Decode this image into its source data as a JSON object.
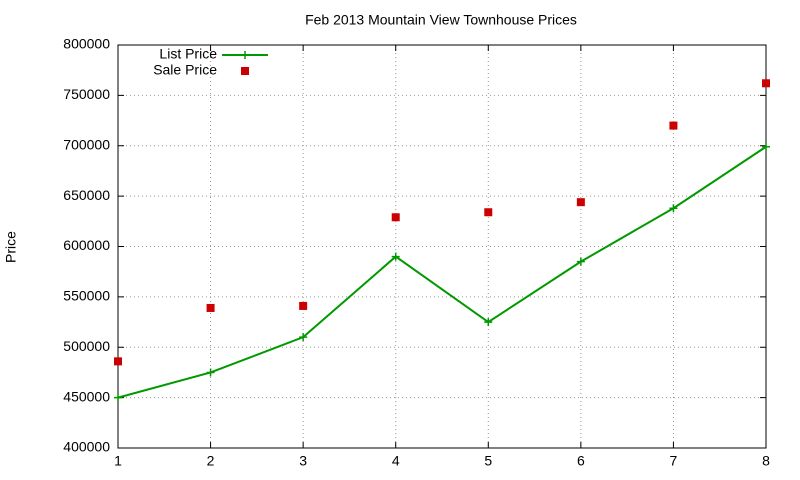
{
  "chart_data": {
    "type": "line",
    "title": "Feb 2013 Mountain View Townhouse Prices",
    "y_label": "Price",
    "x": [
      1,
      2,
      3,
      4,
      5,
      6,
      7,
      8
    ],
    "series": [
      {
        "name": "List Price",
        "color": "#009900",
        "style": "linespoints",
        "values": [
          450000,
          475000,
          510000,
          590000,
          525000,
          585000,
          638000,
          699000
        ]
      },
      {
        "name": "Sale Price",
        "color": "#cc0000",
        "style": "points",
        "values": [
          486000,
          539000,
          541000,
          629000,
          634000,
          644000,
          720000,
          762000
        ]
      }
    ],
    "xlim": [
      1,
      8
    ],
    "xticks": [
      1,
      2,
      3,
      4,
      5,
      6,
      7,
      8
    ],
    "ylim": [
      400000,
      800000
    ],
    "yticks": [
      400000,
      450000,
      500000,
      550000,
      600000,
      650000,
      700000,
      750000,
      800000
    ],
    "grid": true,
    "legend": "top-left"
  }
}
